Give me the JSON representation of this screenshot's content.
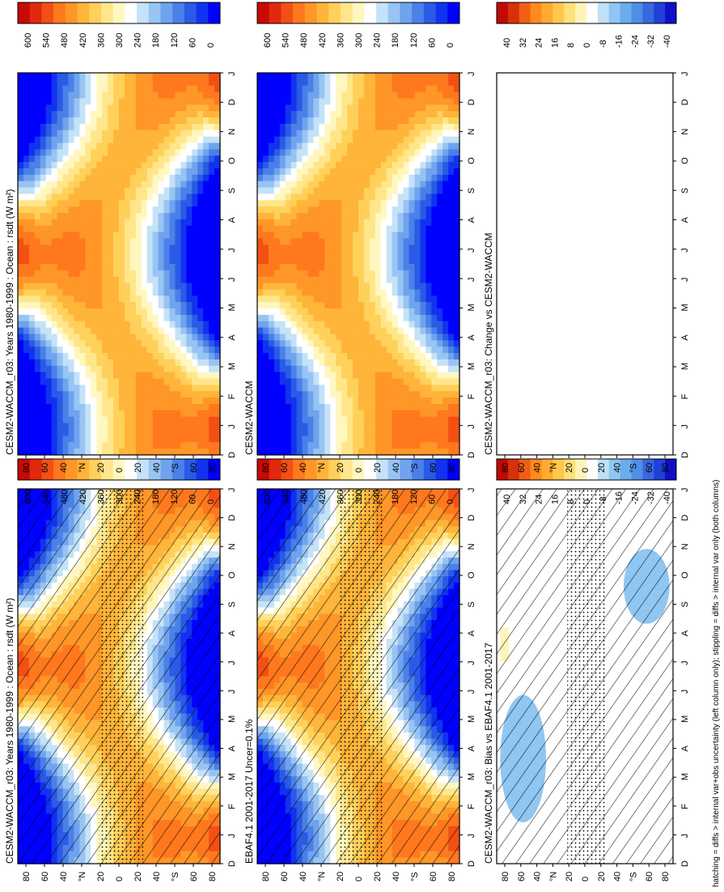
{
  "footnote": "hatching = diffs > internal var+obs uncertainty (left column only); stippling = diffs > internal var only (both columns)",
  "colors": {
    "abs_scale": [
      "#0000ff",
      "#1133f0",
      "#2a5ae6",
      "#4a80e8",
      "#6fa3ee",
      "#98c4f3",
      "#c4e2f8",
      "#ffffff",
      "#fff7c0",
      "#ffe68a",
      "#ffd05a",
      "#ffb43a",
      "#ff9628",
      "#ff781e",
      "#f25014",
      "#e0280c",
      "#c80a05"
    ],
    "diff_scale": [
      "#1010c8",
      "#2040d8",
      "#3868e0",
      "#4f8fe6",
      "#6aacee",
      "#8fc6f2",
      "#bfe0f8",
      "#ffffff",
      "#fff4b8",
      "#ffe07a",
      "#ffc84a",
      "#ffaa30",
      "#ff8a1f",
      "#f06014",
      "#d8300a",
      "#c00a05"
    ]
  },
  "chart_data": [
    {
      "type": "heatmap",
      "panel": "row1-left",
      "title": "CESM2-WACCM_r03: Years 1980-1999 : Ocean : rsdt (W m²)",
      "x": [
        "D",
        "J",
        "F",
        "M",
        "A",
        "M",
        "J",
        "J",
        "A",
        "S",
        "O",
        "N",
        "D",
        "J"
      ],
      "y": [
        "80",
        "60",
        "40",
        "°N",
        "20",
        "0",
        "20",
        "40",
        "°S",
        "60",
        "80"
      ],
      "colorbar_ticks": [
        "600",
        "540",
        "480",
        "420",
        "360",
        "300",
        "240",
        "180",
        "120",
        "60",
        "0"
      ],
      "range": [
        0,
        600
      ],
      "hatching": true,
      "stippling": true
    },
    {
      "type": "heatmap",
      "panel": "row1-right",
      "title": "CESM2-WACCM_r03: Years 1980-1999 : Ocean : rsdt (W m²)",
      "x": [
        "D",
        "J",
        "F",
        "M",
        "A",
        "M",
        "J",
        "J",
        "A",
        "S",
        "O",
        "N",
        "D",
        "J"
      ],
      "y": [
        "80",
        "60",
        "40",
        "°N",
        "20",
        "0",
        "20",
        "40",
        "°S",
        "60",
        "80"
      ],
      "colorbar_ticks": [
        "600",
        "540",
        "480",
        "420",
        "360",
        "300",
        "240",
        "180",
        "120",
        "60",
        "0"
      ],
      "range": [
        0,
        600
      ],
      "hatching": false,
      "stippling": false
    },
    {
      "type": "heatmap",
      "panel": "row2-left",
      "title": "EBAF4.1 2001-2017 Uncer=0.1%",
      "x": [
        "D",
        "J",
        "F",
        "M",
        "A",
        "M",
        "J",
        "J",
        "A",
        "S",
        "O",
        "N",
        "D",
        "J"
      ],
      "y": [
        "80",
        "60",
        "40",
        "°N",
        "20",
        "0",
        "20",
        "40",
        "°S",
        "60",
        "80"
      ],
      "colorbar_ticks": [
        "600",
        "540",
        "480",
        "420",
        "360",
        "300",
        "240",
        "180",
        "120",
        "60",
        "0"
      ],
      "range": [
        0,
        600
      ],
      "hatching": true,
      "stippling": true
    },
    {
      "type": "heatmap",
      "panel": "row2-right",
      "title": "CESM2-WACCM",
      "x": [
        "D",
        "J",
        "F",
        "M",
        "A",
        "M",
        "J",
        "J",
        "A",
        "S",
        "O",
        "N",
        "D",
        "J"
      ],
      "y": [
        "80",
        "60",
        "40",
        "°N",
        "20",
        "0",
        "20",
        "40",
        "°S",
        "60",
        "80"
      ],
      "colorbar_ticks": [
        "600",
        "540",
        "480",
        "420",
        "360",
        "300",
        "240",
        "180",
        "120",
        "60",
        "0"
      ],
      "range": [
        0,
        600
      ],
      "hatching": false,
      "stippling": false
    },
    {
      "type": "heatmap",
      "panel": "row3-left",
      "title": "CESM2-WACCM_r03: Bias vs EBAF4.1 2001-2017",
      "x": [
        "D",
        "J",
        "F",
        "M",
        "A",
        "M",
        "J",
        "J",
        "A",
        "S",
        "O",
        "N",
        "D",
        "J"
      ],
      "y": [
        "80",
        "60",
        "40",
        "°N",
        "20",
        "0",
        "20",
        "40",
        "°S",
        "60",
        "80"
      ],
      "colorbar_ticks": [
        "40",
        "32",
        "24",
        "16",
        "8",
        "0",
        "-8",
        "-16",
        "-24",
        "-32",
        "-40"
      ],
      "range": [
        -40,
        40
      ],
      "hatching": true,
      "stippling": true
    },
    {
      "type": "heatmap",
      "panel": "row3-right",
      "title": "CESM2-WACCM_r03: Change vs CESM2-WACCM",
      "x": [
        "D",
        "J",
        "F",
        "M",
        "A",
        "M",
        "J",
        "J",
        "A",
        "S",
        "O",
        "N",
        "D",
        "J"
      ],
      "y": [
        "80",
        "60",
        "40",
        "°N",
        "20",
        "0",
        "20",
        "40",
        "°S",
        "60",
        "80"
      ],
      "colorbar_ticks": [
        "40",
        "32",
        "24",
        "16",
        "8",
        "0",
        "-8",
        "-16",
        "-24",
        "-32",
        "-40"
      ],
      "range": [
        -40,
        40
      ],
      "hatching": false,
      "stippling": false
    }
  ]
}
